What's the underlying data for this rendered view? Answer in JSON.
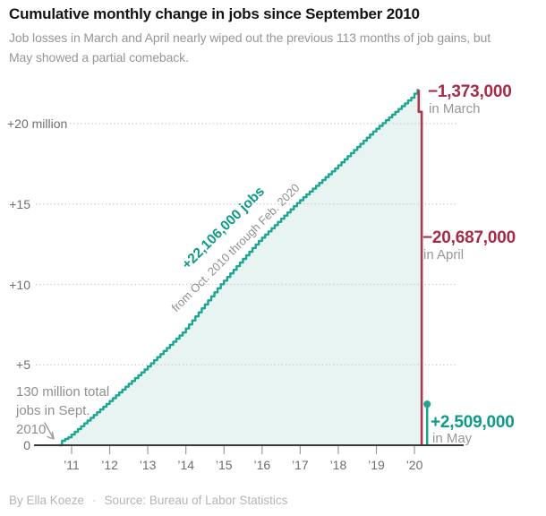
{
  "header": {
    "title": "Cumulative monthly change in jobs since September 2010",
    "subtitle_line1": "Job losses in March and April nearly wiped out the previous 113 months of job gains, but",
    "subtitle_line2": "May showed a partial comeback."
  },
  "footer": {
    "byline": "By Ella Koeze",
    "separator": "·",
    "source": "Source: Bureau of Labor Statistics"
  },
  "colors": {
    "teal_line": "#1ca691",
    "teal_text": "#0f9a88",
    "area_fill": "#e8f4f1",
    "red_line": "#aa3a50",
    "red_text": "#a42c47",
    "grid": "#c9c9c9",
    "baseline": "#3a3a3a",
    "tick": "#9b9b9b",
    "gray_text": "#979797"
  },
  "annotations": {
    "march": {
      "value": "−1,373,000",
      "label": "in March"
    },
    "april": {
      "value": "−20,687,000",
      "label": "in April"
    },
    "may": {
      "value": "+2,509,000",
      "label": "in May"
    },
    "total_gain": {
      "value": "+22,106,000 jobs",
      "label": "from Oct. 2010 through Feb. 2020"
    },
    "start_note": {
      "line1": "130 million total",
      "line2": "jobs in Sept.",
      "line3": "2010"
    }
  },
  "chart_data": {
    "type": "area",
    "title": "Cumulative monthly change in jobs since September 2010",
    "x_start": "Sep 2010",
    "x_end": "May 2020",
    "x_tick_labels": [
      "’11",
      "’12",
      "’13",
      "’14",
      "’15",
      "’16",
      "’17",
      "’18",
      "’19",
      "’20"
    ],
    "y_tick_labels": [
      "+20 million",
      "+15",
      "+10",
      "+5",
      "0"
    ],
    "y_tick_values_millions": [
      20,
      15,
      10,
      5,
      0
    ],
    "ylim_millions": [
      0,
      22.5
    ],
    "grid": "dotted horizontal lines",
    "legend": "none",
    "unit": "cumulative change in jobs since September 2010, thousands",
    "series": [
      {
        "name": "Cumulative change in jobs (thousands, monthly Sep 2010 – May 2020)",
        "values": [
          0,
          277,
          398,
          490,
          663,
          837,
          1010,
          1183,
          1357,
          1530,
          1703,
          1877,
          2050,
          2223,
          2397,
          2570,
          2748,
          2927,
          3105,
          3283,
          3462,
          3640,
          3818,
          3997,
          4175,
          4353,
          4532,
          4710,
          4902,
          5093,
          5285,
          5477,
          5668,
          5860,
          6052,
          6243,
          6435,
          6627,
          6818,
          7010,
          7260,
          7510,
          7760,
          8010,
          8260,
          8510,
          8760,
          9010,
          9260,
          9510,
          9760,
          10010,
          10235,
          10460,
          10685,
          10910,
          11135,
          11360,
          11585,
          11810,
          12035,
          12260,
          12485,
          12710,
          12906,
          13102,
          13298,
          13493,
          13689,
          13885,
          14081,
          14277,
          14473,
          14668,
          14864,
          15060,
          15239,
          15418,
          15598,
          15777,
          15956,
          16135,
          16314,
          16494,
          16673,
          16852,
          17031,
          17210,
          17402,
          17593,
          17785,
          17977,
          18168,
          18360,
          18552,
          18743,
          18935,
          19127,
          19318,
          19510,
          19685,
          19860,
          20035,
          20210,
          20385,
          20560,
          20735,
          20910,
          21085,
          21260,
          21435,
          21610,
          21858,
          22106,
          20733,
          46,
          2555
        ]
      }
    ],
    "key_points": {
      "peak_feb_2020_thousands": 22106,
      "march_2020_level_thousands": 20733,
      "april_2020_level_thousands": 46,
      "may_2020_level_thousands": 2555,
      "march_change": -1373000,
      "april_change": -20687000,
      "may_change": 2509000,
      "total_gain_oct2010_feb2020": 22106000,
      "months_of_gains": 113
    }
  }
}
